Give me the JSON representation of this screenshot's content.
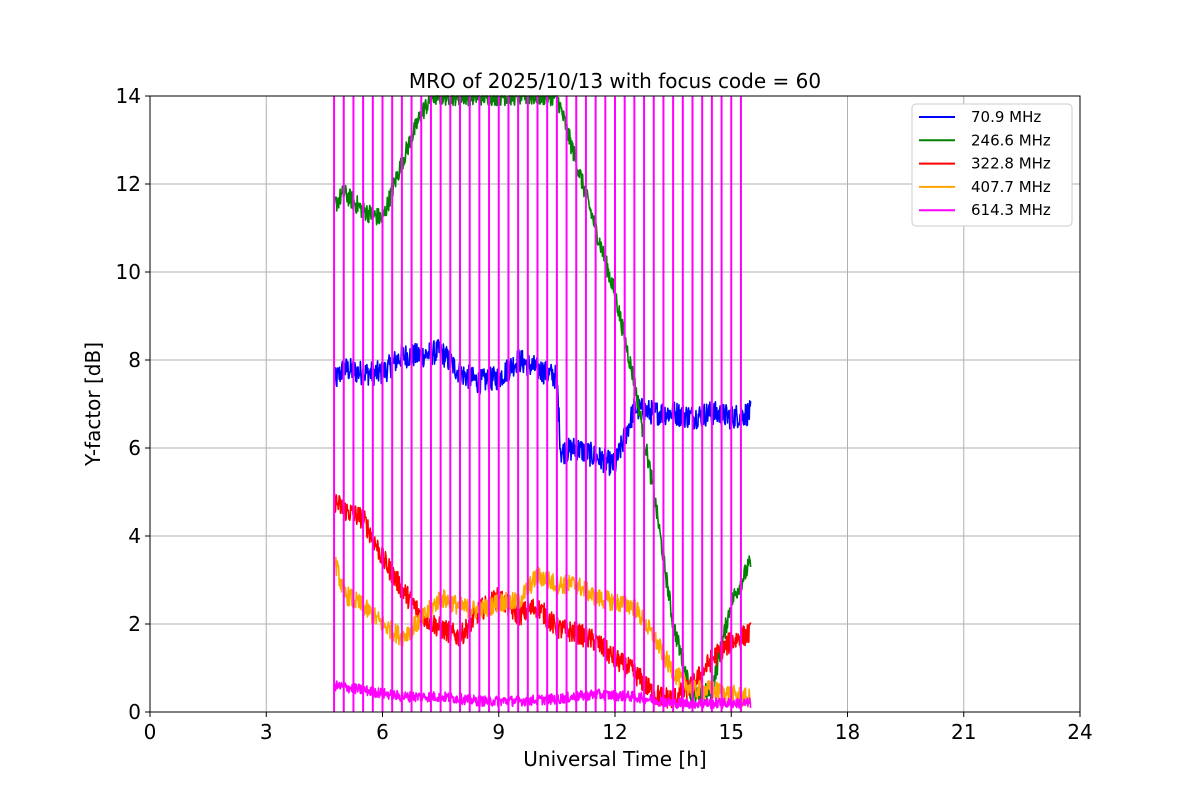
{
  "chart_data": {
    "type": "line",
    "title": "MRO of 2025/10/13 with focus code = 60",
    "xlabel": "Universal Time [h]",
    "ylabel": "Y-factor [dB]",
    "xlim": [
      0,
      24
    ],
    "ylim": [
      0,
      14
    ],
    "xticks": [
      0,
      3,
      6,
      9,
      12,
      15,
      18,
      21,
      24
    ],
    "yticks": [
      0,
      2,
      4,
      6,
      8,
      10,
      12,
      14
    ],
    "grid": true,
    "legend_position": "top-right",
    "series": [
      {
        "name": " 70.9 MHz",
        "color": "#0000ff",
        "x": [
          4.75,
          5.0,
          5.5,
          6.0,
          6.5,
          7.0,
          7.5,
          8.0,
          8.5,
          9.0,
          9.5,
          10.0,
          10.5,
          10.6,
          11.0,
          11.5,
          12.0,
          12.5,
          13.0,
          13.5,
          14.0,
          14.5,
          15.0,
          15.5
        ],
        "y": [
          7.5,
          7.8,
          7.7,
          7.7,
          8.1,
          8.1,
          8.2,
          7.7,
          7.5,
          7.6,
          8.0,
          7.8,
          7.6,
          5.9,
          6.0,
          5.8,
          5.6,
          6.9,
          6.8,
          6.8,
          6.7,
          6.8,
          6.7,
          6.8
        ]
      },
      {
        "name": "246.6 MHz",
        "color": "#008000",
        "x": [
          4.75,
          5.0,
          5.5,
          6.0,
          6.5,
          7.0,
          7.3,
          10.5,
          11.0,
          11.5,
          12.0,
          12.5,
          13.0,
          13.5,
          14.0,
          14.5,
          15.0,
          15.5
        ],
        "y": [
          11.5,
          11.8,
          11.4,
          11.2,
          12.5,
          13.6,
          14.0,
          14.0,
          12.5,
          11.0,
          9.5,
          7.5,
          5.0,
          2.0,
          0.3,
          0.5,
          2.5,
          3.4
        ]
      },
      {
        "name": "322.8 MHz",
        "color": "#ff0000",
        "x": [
          4.75,
          5.0,
          5.5,
          6.0,
          6.5,
          7.0,
          7.5,
          8.0,
          8.5,
          9.0,
          9.5,
          10.0,
          10.5,
          11.0,
          11.5,
          12.0,
          12.5,
          13.0,
          13.5,
          14.0,
          14.5,
          15.0,
          15.5
        ],
        "y": [
          4.8,
          4.6,
          4.4,
          3.5,
          2.8,
          2.2,
          1.9,
          1.7,
          2.3,
          2.6,
          2.2,
          2.4,
          1.9,
          1.8,
          1.6,
          1.2,
          0.9,
          0.4,
          0.3,
          0.6,
          1.2,
          1.6,
          1.8
        ]
      },
      {
        "name": "407.7 MHz",
        "color": "#ffa500",
        "x": [
          4.75,
          5.0,
          5.5,
          6.0,
          6.5,
          7.0,
          7.5,
          8.0,
          8.5,
          9.0,
          9.5,
          10.0,
          10.5,
          11.0,
          11.5,
          12.0,
          12.5,
          13.0,
          13.5,
          14.0,
          14.5,
          15.0,
          15.5
        ],
        "y": [
          3.5,
          2.7,
          2.4,
          2.0,
          1.7,
          2.1,
          2.6,
          2.4,
          2.3,
          2.5,
          2.5,
          3.1,
          2.9,
          2.9,
          2.6,
          2.5,
          2.4,
          1.7,
          0.9,
          0.5,
          0.5,
          0.4,
          0.3
        ]
      },
      {
        "name": "614.3 MHz",
        "color": "#ff00ff",
        "x": [
          4.75,
          5.5,
          6.5,
          7.5,
          8.5,
          9.5,
          10.5,
          11.5,
          12.5,
          13.5,
          14.5,
          15.5
        ],
        "y": [
          0.6,
          0.5,
          0.35,
          0.35,
          0.25,
          0.25,
          0.3,
          0.4,
          0.35,
          0.2,
          0.2,
          0.2
        ],
        "spikes_start": 4.75,
        "spikes_end": 15.25,
        "spike_count": 43
      }
    ]
  }
}
